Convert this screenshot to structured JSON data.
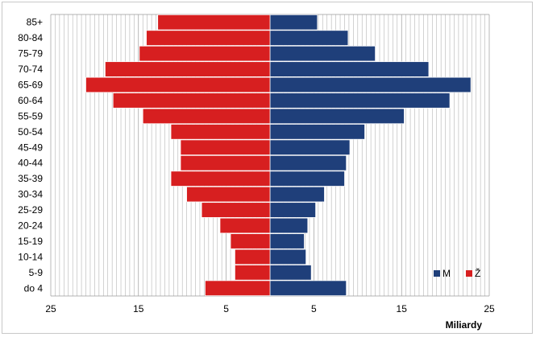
{
  "chart_data": {
    "type": "bar",
    "orientation": "horizontal",
    "subtype": "population-pyramid",
    "title": "",
    "xlabel": "Miliardy",
    "ylabel": "",
    "categories": [
      "do 4",
      "5-9",
      "10-14",
      "15-19",
      "20-24",
      "25-29",
      "30-34",
      "35-39",
      "40-44",
      "45-49",
      "50-54",
      "55-59",
      "60-64",
      "65-69",
      "70-74",
      "75-79",
      "80-84",
      "85+"
    ],
    "series": [
      {
        "name": "M",
        "side": "right",
        "color": "#1f3f7a",
        "values": [
          8.7,
          4.7,
          4.1,
          3.9,
          4.3,
          5.2,
          6.2,
          8.5,
          8.7,
          9.1,
          10.8,
          15.3,
          20.5,
          22.9,
          18.1,
          12.0,
          8.9,
          5.4
        ]
      },
      {
        "name": "Ž",
        "side": "left",
        "color": "#d71f20",
        "values": [
          7.4,
          4.0,
          4.0,
          4.5,
          5.7,
          7.8,
          9.5,
          11.3,
          10.2,
          10.2,
          11.3,
          14.5,
          17.9,
          21.0,
          18.8,
          14.9,
          14.1,
          12.8
        ]
      }
    ],
    "x_tick_labels": [
      "25",
      "15",
      "5",
      "5",
      "15",
      "25"
    ],
    "xlim": [
      -25,
      25
    ],
    "grid": true,
    "legend_position": "bottom-right"
  }
}
